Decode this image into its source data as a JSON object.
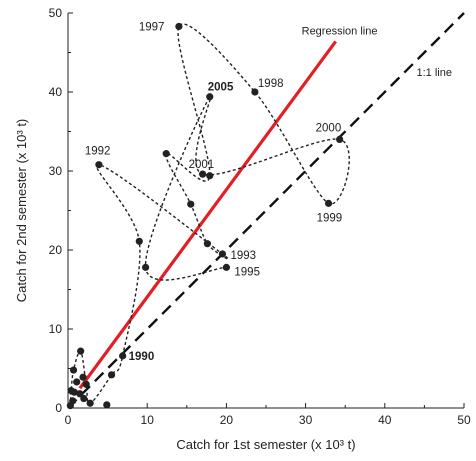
{
  "chart_data": {
    "type": "scatter",
    "xlabel": "Catch for 1st semester (x 10³ t)",
    "ylabel": "Catch for 2nd semester (x 10³ t)",
    "xlim": [
      0,
      50
    ],
    "ylim": [
      0,
      50
    ],
    "xticks": [
      "0",
      "10",
      "20",
      "30",
      "40",
      "50"
    ],
    "yticks": [
      "0",
      "10",
      "20",
      "30",
      "40",
      "50"
    ],
    "grid": false,
    "colors": {
      "regression": "#e31e24",
      "points": "#222222"
    },
    "series": [
      {
        "name": "annual catches",
        "points": [
          {
            "x": 0.3,
            "y": 0.3
          },
          {
            "x": 0.6,
            "y": 0.9
          },
          {
            "x": 0.8,
            "y": 2.0
          },
          {
            "x": 0.4,
            "y": 2.2
          },
          {
            "x": 1.1,
            "y": 3.3
          },
          {
            "x": 0.7,
            "y": 4.8
          },
          {
            "x": 1.6,
            "y": 7.2
          },
          {
            "x": 1.9,
            "y": 3.9
          },
          {
            "x": 2.3,
            "y": 3.0
          },
          {
            "x": 1.5,
            "y": 1.8
          },
          {
            "x": 2.0,
            "y": 1.2
          },
          {
            "x": 2.8,
            "y": 0.6
          },
          {
            "x": 4.9,
            "y": 0.4
          },
          {
            "x": 5.5,
            "y": 4.2
          },
          {
            "x": 6.9,
            "y": 6.6,
            "label": "1990",
            "bold": true
          },
          {
            "x": 9.0,
            "y": 21.1
          },
          {
            "x": 3.9,
            "y": 30.8,
            "label": "1992"
          },
          {
            "x": 19.5,
            "y": 19.5,
            "label": "1993"
          },
          {
            "x": 20.0,
            "y": 17.8,
            "label": "1995"
          },
          {
            "x": 9.8,
            "y": 17.8
          },
          {
            "x": 17.6,
            "y": 20.8
          },
          {
            "x": 15.5,
            "y": 25.8
          },
          {
            "x": 12.4,
            "y": 32.2
          },
          {
            "x": 17.0,
            "y": 29.6,
            "label": "2001"
          },
          {
            "x": 17.9,
            "y": 29.4
          },
          {
            "x": 14.0,
            "y": 48.3,
            "label": "1997"
          },
          {
            "x": 23.6,
            "y": 40.0,
            "label": "1998"
          },
          {
            "x": 17.9,
            "y": 39.4,
            "label": "2005",
            "bold": true
          },
          {
            "x": 32.9,
            "y": 25.9,
            "label": "1999"
          },
          {
            "x": 34.3,
            "y": 34.0,
            "label": "2000"
          }
        ],
        "trajectory": [
          [
            0.3,
            0.3
          ],
          [
            0.4,
            2.2
          ],
          [
            0.7,
            4.8
          ],
          [
            1.6,
            7.2
          ],
          [
            2.3,
            3.0
          ],
          [
            2.8,
            0.6
          ],
          [
            5.5,
            4.2
          ],
          [
            6.9,
            6.6
          ],
          [
            9.0,
            21.1
          ],
          [
            3.9,
            30.8
          ],
          [
            19.5,
            19.5
          ],
          [
            17.6,
            20.8
          ],
          [
            15.5,
            25.8
          ],
          [
            12.4,
            32.2
          ],
          [
            17.9,
            29.4
          ],
          [
            14.0,
            48.3
          ],
          [
            23.6,
            40.0
          ],
          [
            32.9,
            25.9
          ],
          [
            34.3,
            34.0
          ],
          [
            17.0,
            29.6
          ],
          [
            17.9,
            39.4
          ],
          [
            9.8,
            17.8
          ],
          [
            20.0,
            17.8
          ]
        ]
      }
    ],
    "lines": [
      {
        "name": "Regression line",
        "from": [
          1.5,
          2.5
        ],
        "to": [
          33.8,
          46.4
        ],
        "style": "solid"
      },
      {
        "name": "1:1 line",
        "from": [
          0,
          0
        ],
        "to": [
          50,
          50
        ],
        "style": "dashed"
      }
    ],
    "annotations": [
      {
        "text": "Regression line",
        "x": 29.5,
        "y": 47.3
      },
      {
        "text": "1:1 line",
        "x": 44.0,
        "y": 42.0
      }
    ]
  }
}
